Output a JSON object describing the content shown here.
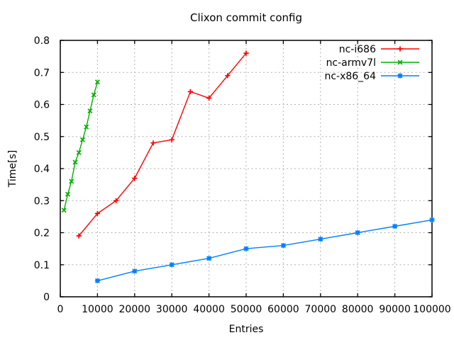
{
  "chart_data": {
    "type": "line",
    "title": "Clixon commit config",
    "xlabel": "Entries",
    "ylabel": "Time[s]",
    "xlim": [
      0,
      100000
    ],
    "ylim": [
      0,
      0.8
    ],
    "grid": true,
    "legend_position": "top-right-inside",
    "colors": {
      "background": "#ffffff",
      "border": "#000000",
      "grid": "#b0b0b0",
      "text": "#000000"
    },
    "xticks": {
      "values": [
        0,
        10000,
        20000,
        30000,
        40000,
        50000,
        60000,
        70000,
        80000,
        90000,
        100000
      ],
      "labels": [
        "0",
        "10000",
        "20000",
        "30000",
        "40000",
        "50000",
        "60000",
        "70000",
        "80000",
        "90000",
        "100000"
      ]
    },
    "yticks": {
      "values": [
        0,
        0.1,
        0.2,
        0.3,
        0.4,
        0.5,
        0.6,
        0.7,
        0.8
      ],
      "labels": [
        "0",
        "0.1",
        "0.2",
        "0.3",
        "0.4",
        "0.5",
        "0.6",
        "0.7",
        "0.8"
      ]
    },
    "series": [
      {
        "name": "nc-i686",
        "color": "#ff0000",
        "marker": "plus",
        "points": [
          [
            5000,
            0.19
          ],
          [
            10000,
            0.26
          ],
          [
            15000,
            0.3
          ],
          [
            20000,
            0.37
          ],
          [
            25000,
            0.48
          ],
          [
            30000,
            0.49
          ],
          [
            35000,
            0.64
          ],
          [
            40000,
            0.62
          ],
          [
            45000,
            0.69
          ],
          [
            50000,
            0.76
          ]
        ]
      },
      {
        "name": "nc-armv7l",
        "color": "#00b000",
        "marker": "cross",
        "points": [
          [
            1000,
            0.27
          ],
          [
            2000,
            0.32
          ],
          [
            3000,
            0.36
          ],
          [
            4000,
            0.42
          ],
          [
            5000,
            0.45
          ],
          [
            6000,
            0.49
          ],
          [
            7000,
            0.53
          ],
          [
            8000,
            0.58
          ],
          [
            9000,
            0.63
          ],
          [
            10000,
            0.67
          ]
        ]
      },
      {
        "name": "nc-x86_64",
        "color": "#0080ff",
        "marker": "asterisk",
        "points": [
          [
            10000,
            0.05
          ],
          [
            20000,
            0.08
          ],
          [
            30000,
            0.1
          ],
          [
            40000,
            0.12
          ],
          [
            50000,
            0.15
          ],
          [
            60000,
            0.16
          ],
          [
            70000,
            0.18
          ],
          [
            80000,
            0.2
          ],
          [
            90000,
            0.22
          ],
          [
            100000,
            0.24
          ]
        ]
      }
    ]
  }
}
